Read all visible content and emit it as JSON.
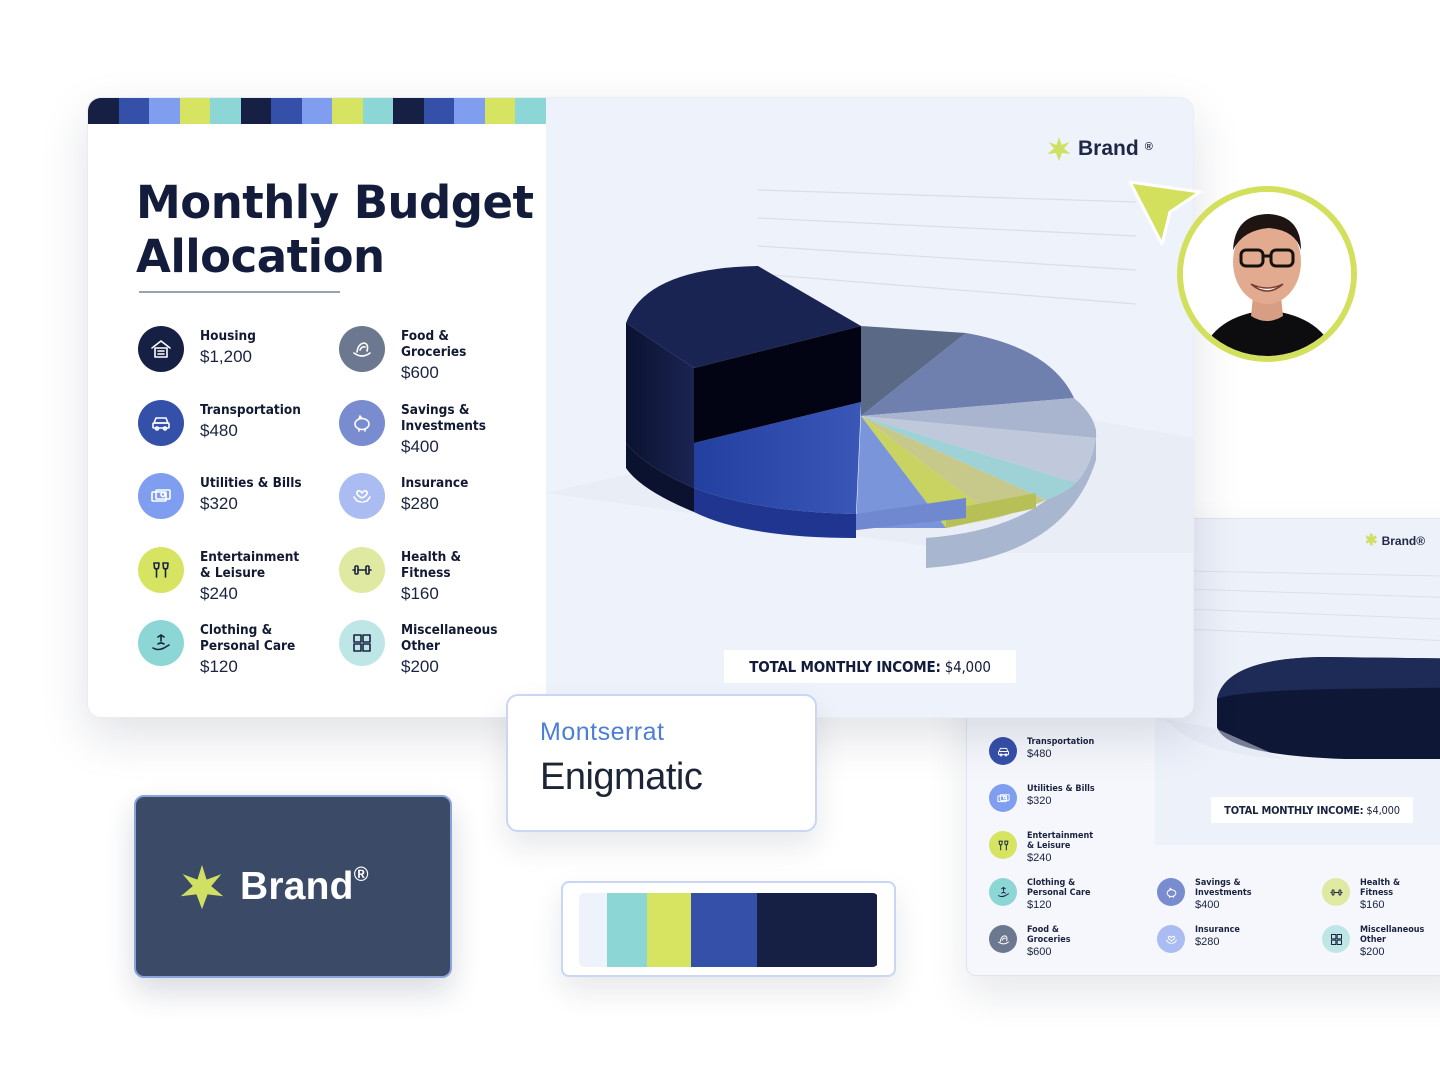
{
  "slide": {
    "title_line1": "Monthly Budget",
    "title_line2": "Allocation",
    "brand_label": "Brand",
    "brand_mark": "®",
    "total_label": "TOTAL MONTHLY INCOME:",
    "total_value": "$4,000",
    "stripe_colors": [
      "#162044",
      "#3550a8",
      "#7f9ef0",
      "#d6e461",
      "#8dd6d6",
      "#162044",
      "#3550a8",
      "#7f9ef0",
      "#d6e461",
      "#8dd6d6",
      "#162044",
      "#3550a8",
      "#7f9ef0",
      "#d6e461",
      "#8dd6d6"
    ],
    "categories": [
      {
        "name": "Housing",
        "amount": "$1,200",
        "icon": "house-icon",
        "color": "#162044"
      },
      {
        "name": "Food &\nGroceries",
        "amount": "$600",
        "icon": "food-icon",
        "color": "#6b7890"
      },
      {
        "name": "Transportation",
        "amount": "$480",
        "icon": "car-icon",
        "color": "#3550a8"
      },
      {
        "name": "Savings &\nInvestments",
        "amount": "$400",
        "icon": "piggy-bank-icon",
        "color": "#7a8cd0"
      },
      {
        "name": "Utilities & Bills",
        "amount": "$320",
        "icon": "bills-icon",
        "color": "#7f9ef0"
      },
      {
        "name": "Insurance",
        "amount": "$280",
        "icon": "heart-hands-icon",
        "color": "#aabcf2"
      },
      {
        "name": "Entertainment\n& Leisure",
        "amount": "$240",
        "icon": "glasses-icon",
        "color": "#d6e461"
      },
      {
        "name": "Health &\nFitness",
        "amount": "$160",
        "icon": "dumbbell-icon",
        "color": "#e0e9a2"
      },
      {
        "name": "Clothing &\nPersonal Care",
        "amount": "$120",
        "icon": "hand-care-icon",
        "color": "#8dd6d6"
      },
      {
        "name": "Miscellaneous\nOther",
        "amount": "$200",
        "icon": "grid-icon",
        "color": "#bfe6e6"
      }
    ]
  },
  "slide2": {
    "brand_label": "Brand®",
    "total_label": "TOTAL MONTHLY INCOME:",
    "total_value": "$4,000",
    "items": [
      {
        "name": "Transportation",
        "amount": "$480",
        "icon": "car-icon",
        "color": "#3550a8"
      },
      {
        "name": "Utilities & Bills",
        "amount": "$320",
        "icon": "bills-icon",
        "color": "#7f9ef0"
      },
      {
        "name": "Entertainment\n& Leisure",
        "amount": "$240",
        "icon": "glasses-icon",
        "color": "#d6e461"
      },
      {
        "name": "Clothing &\nPersonal Care",
        "amount": "$120",
        "icon": "hand-care-icon",
        "color": "#8dd6d6"
      },
      {
        "name": "Food &\nGroceries",
        "amount": "$600",
        "icon": "food-icon",
        "color": "#6b7890"
      },
      {
        "name": "Savings &\nInvestments",
        "amount": "$400",
        "icon": "piggy-bank-icon",
        "color": "#7a8cd0"
      },
      {
        "name": "Insurance",
        "amount": "$280",
        "icon": "heart-hands-icon",
        "color": "#aabcf2"
      },
      {
        "name": "Health &\nFitness",
        "amount": "$160",
        "icon": "dumbbell-icon",
        "color": "#e0e9a2"
      },
      {
        "name": "Miscellaneous\nOther",
        "amount": "$200",
        "icon": "grid-icon",
        "color": "#bfe6e6"
      }
    ]
  },
  "font_card": {
    "font_name": "Montserrat",
    "sample": "Enigmatic"
  },
  "brand_card": {
    "label": "Brand",
    "mark": "®",
    "background": "#3b4a66",
    "star_color": "#cfe063"
  },
  "palette": {
    "colors": [
      "#eef2fa",
      "#8dd6d6",
      "#d6e461",
      "#3550a8",
      "#162044"
    ]
  },
  "cursor_color": "#d3e05e",
  "avatar_ring_color": "#d3e05e"
}
